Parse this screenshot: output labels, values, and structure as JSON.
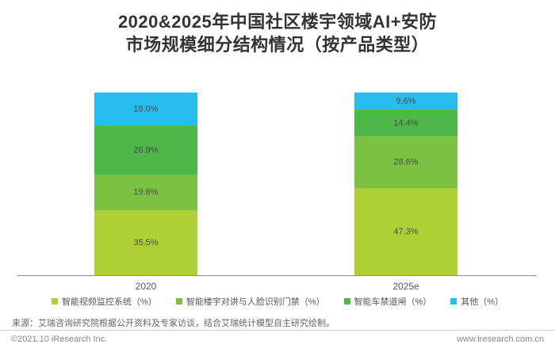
{
  "title": {
    "line1": "2020&2025年中国社区楼宇领域AI+安防",
    "line2": "市场规模细分结构情况（按产品类型）"
  },
  "chart_data": {
    "type": "bar",
    "stacked": true,
    "categories": [
      "2020",
      "2025e"
    ],
    "series": [
      {
        "name": "智能视频监控系统（%）",
        "color": "#afd034",
        "values": [
          35.5,
          47.3
        ]
      },
      {
        "name": "智能楼宇对讲与人脸识别门禁（%）",
        "color": "#7dc142",
        "values": [
          19.6,
          28.6
        ]
      },
      {
        "name": "智能车禁道闸（%）",
        "color": "#4db748",
        "values": [
          26.9,
          14.4
        ]
      },
      {
        "name": "其他（%）",
        "color": "#25beee",
        "values": [
          18.0,
          9.6
        ]
      }
    ],
    "value_suffix": "%",
    "ylim": [
      0,
      100
    ],
    "grid": false,
    "legend_position": "bottom",
    "axis_line_color": "#8c8c8c",
    "label_color": "#4a4a4a"
  },
  "source": "来源：艾瑞咨询研究院根据公开资料及专家访谈，结合艾瑞统计模型自主研究绘制。",
  "footer": {
    "left": "©2021.10 iResearch Inc.",
    "right": "www.iresearch.com.cn"
  }
}
